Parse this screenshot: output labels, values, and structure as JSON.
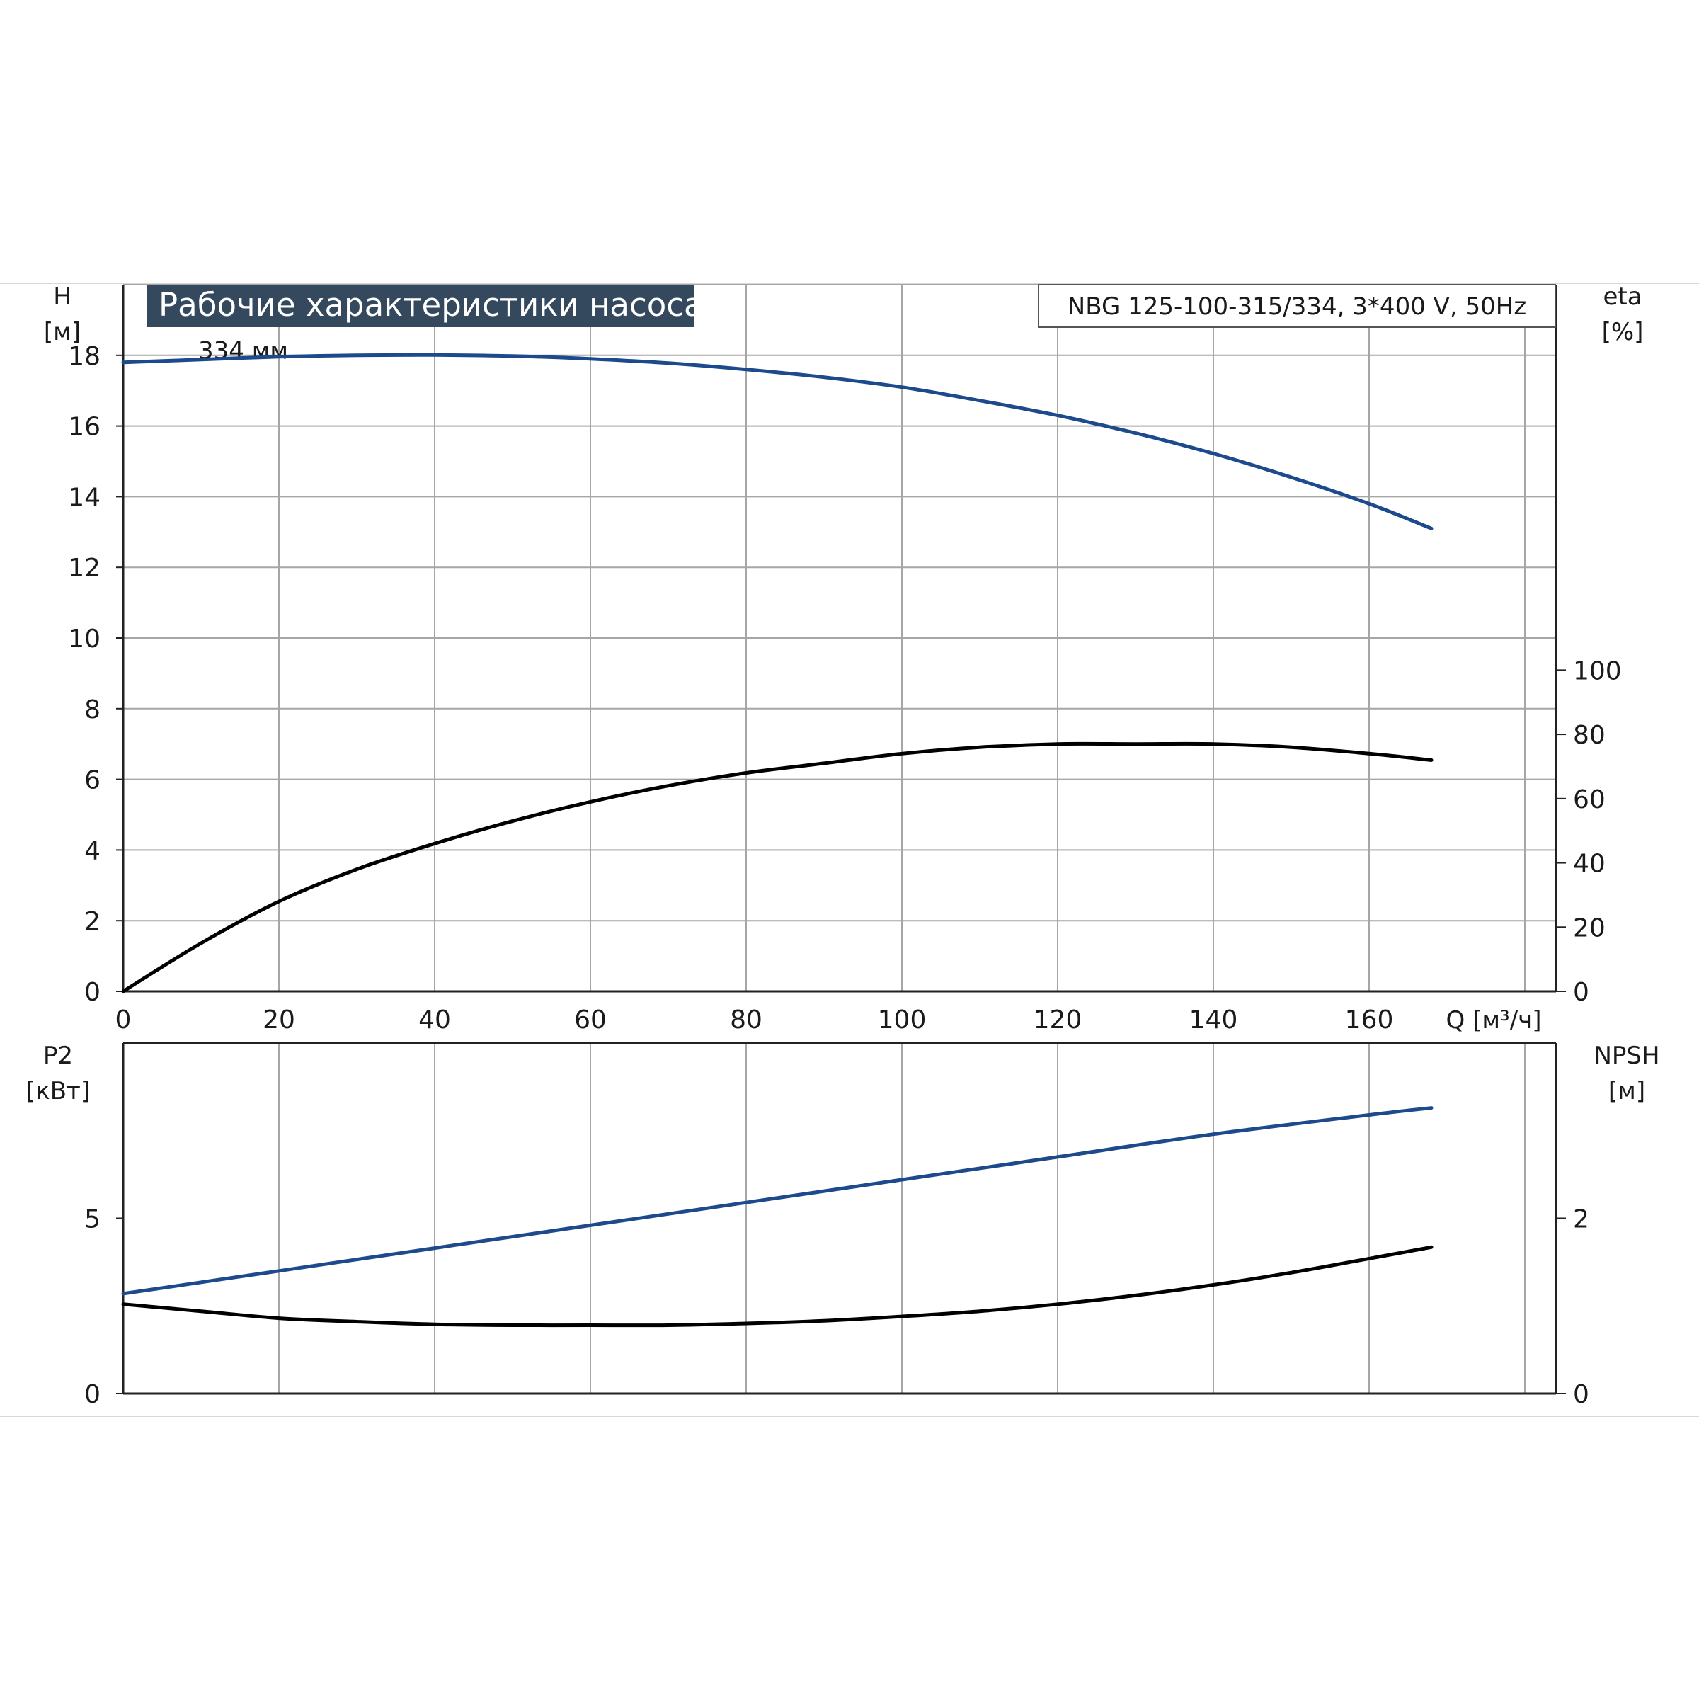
{
  "title": "Рабочие характеристики насоса",
  "model": "NBG 125-100-315/334, 3*400 V, 50Hz",
  "colors": {
    "blue": "#1d4a8c",
    "black": "#000000",
    "grid": "#a6a6a6",
    "title_bg": "#34495e",
    "title_fg": "#ffffff",
    "axis": "#222222"
  },
  "chart_data": [
    {
      "type": "line",
      "xlabel": "Q [м³/ч]",
      "xlim": [
        0,
        180
      ],
      "xticks": [
        0,
        20,
        40,
        60,
        80,
        100,
        120,
        140,
        160
      ],
      "left_axis": {
        "label": "H",
        "unit": "[м]",
        "ylim": [
          0,
          20
        ],
        "ticks": [
          0,
          2,
          4,
          6,
          8,
          10,
          12,
          14,
          16,
          18
        ]
      },
      "right_axis": {
        "label": "eta",
        "unit": "[%]",
        "ylim": [
          0,
          220
        ],
        "ticks": [
          0,
          20,
          40,
          60,
          80,
          100
        ]
      },
      "grid": true,
      "annotations": [
        {
          "text": "334 мм",
          "x": 16,
          "y": 18.15
        }
      ],
      "series": [
        {
          "axis": "left",
          "color": "blue",
          "x": [
            0,
            10,
            20,
            30,
            40,
            50,
            60,
            70,
            80,
            90,
            100,
            110,
            120,
            130,
            140,
            150,
            160,
            168
          ],
          "values": [
            17.8,
            17.88,
            17.96,
            18.0,
            18.01,
            17.98,
            17.9,
            17.78,
            17.6,
            17.38,
            17.1,
            16.72,
            16.3,
            15.8,
            15.22,
            14.55,
            13.8,
            13.1
          ]
        },
        {
          "axis": "right",
          "color": "black",
          "x": [
            0,
            10,
            20,
            30,
            40,
            50,
            60,
            70,
            80,
            90,
            100,
            110,
            120,
            130,
            140,
            150,
            160,
            168
          ],
          "values": [
            0,
            15,
            28,
            38,
            46,
            53,
            59,
            64,
            68,
            71,
            74,
            76,
            77,
            77,
            77,
            76,
            74,
            72
          ]
        }
      ]
    },
    {
      "type": "line",
      "xlim": [
        0,
        180
      ],
      "left_axis": {
        "label": "P2",
        "unit": "[кВт]",
        "ylim": [
          0,
          10
        ],
        "ticks": [
          0,
          5
        ]
      },
      "right_axis": {
        "label": "NPSH",
        "unit": "[м]",
        "ylim": [
          0,
          4
        ],
        "ticks": [
          0,
          2
        ]
      },
      "grid": true,
      "series": [
        {
          "axis": "left",
          "color": "blue",
          "x": [
            0,
            20,
            40,
            60,
            80,
            100,
            120,
            140,
            160,
            168
          ],
          "values": [
            2.85,
            3.5,
            4.15,
            4.8,
            5.45,
            6.1,
            6.75,
            7.4,
            7.95,
            8.15
          ]
        },
        {
          "axis": "right",
          "color": "black",
          "x": [
            0,
            10,
            20,
            30,
            40,
            50,
            60,
            70,
            80,
            90,
            100,
            110,
            120,
            130,
            140,
            150,
            160,
            168
          ],
          "values": [
            1.02,
            0.94,
            0.86,
            0.82,
            0.79,
            0.78,
            0.78,
            0.78,
            0.8,
            0.83,
            0.88,
            0.94,
            1.02,
            1.12,
            1.24,
            1.38,
            1.54,
            1.67
          ]
        }
      ]
    }
  ]
}
